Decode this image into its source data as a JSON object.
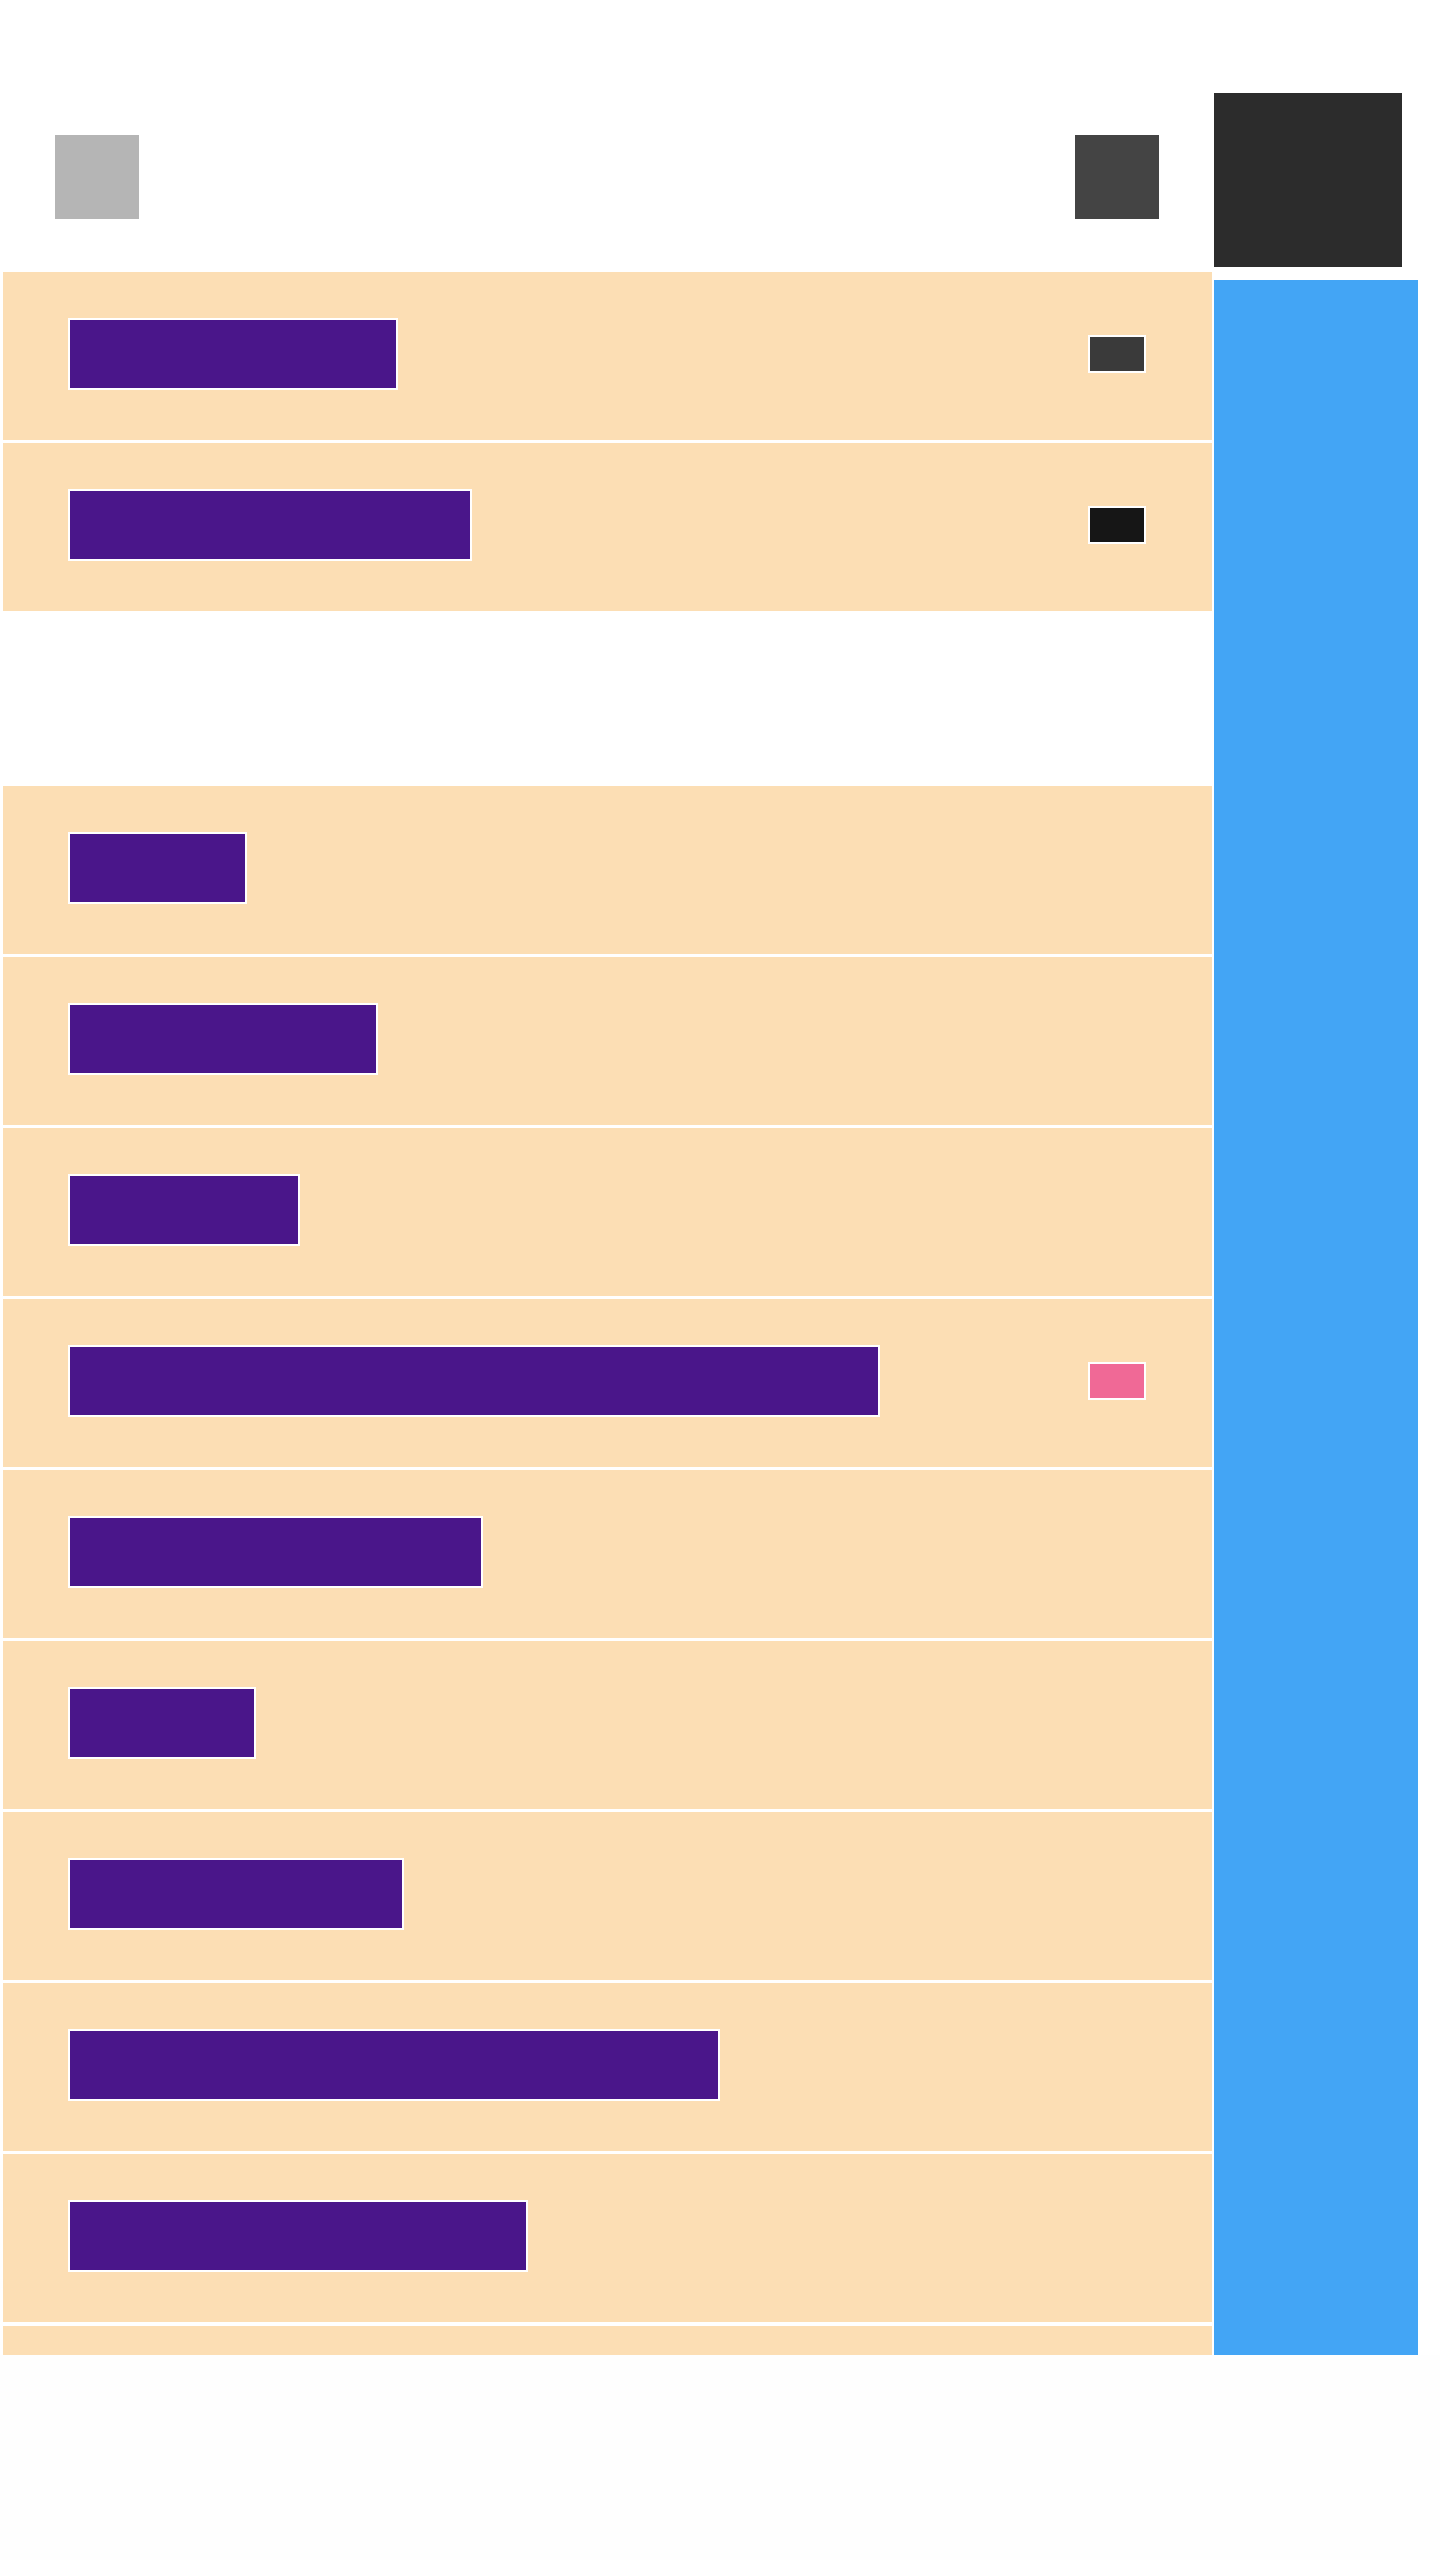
{
  "colors": {
    "page_background": "#ffffff",
    "row_background": "#fcdeb4",
    "row_bar": "#4a168a",
    "side_panel": "#43a5f5",
    "header_left_square": "#b5b5b5",
    "header_right_square": "#444444",
    "header_dark_block": "#2c2c2c"
  },
  "sections": [
    {
      "name": "top-group",
      "rows": [
        {
          "swatch_color": "#3a3a3a"
        },
        {
          "swatch_color": "#161616"
        }
      ]
    },
    {
      "name": "bottom-group",
      "rows": [
        {
          "swatch_color": ""
        },
        {
          "swatch_color": ""
        },
        {
          "swatch_color": ""
        },
        {
          "swatch_color": "#f06996"
        },
        {
          "swatch_color": ""
        },
        {
          "swatch_color": ""
        },
        {
          "swatch_color": ""
        },
        {
          "swatch_color": ""
        },
        {
          "swatch_color": ""
        }
      ]
    }
  ]
}
